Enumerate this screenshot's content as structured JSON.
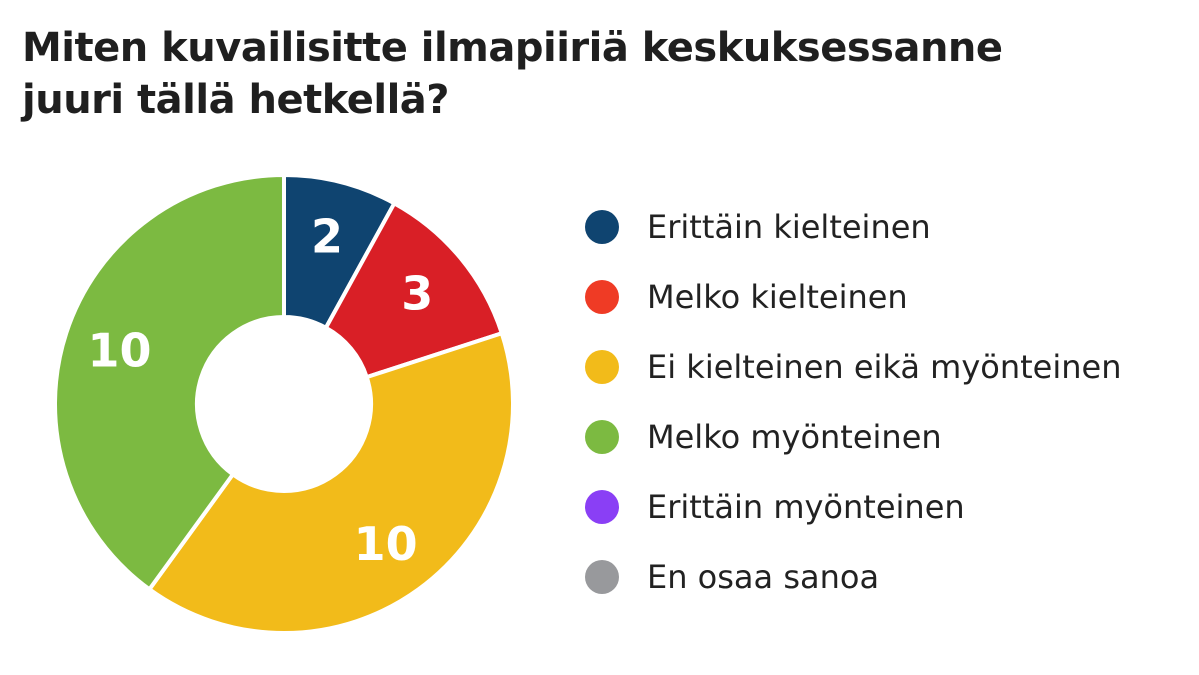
{
  "chart_data": {
    "type": "pie",
    "variant": "donut",
    "title": "Miten kuvailisitte ilmapiiriä keskuksessanne juuri tällä hetkellä?",
    "title_lines": [
      "Miten kuvailisitte ilmapiiriä keskuksessanne",
      "juuri tällä hetkellä?"
    ],
    "categories": [
      "Erittäin kielteinen",
      "Melko kielteinen",
      "Ei kielteinen eikä myönteinen",
      "Melko myönteinen",
      "Erittäin myönteinen",
      "En osaa sanoa"
    ],
    "values": [
      2,
      3,
      10,
      10,
      0,
      0
    ],
    "slice_colors": [
      "#0f4470",
      "#d91f26",
      "#f2bb1a",
      "#7cba41",
      "#8a3ff5",
      "#98999c"
    ],
    "legend_colors": [
      "#0f4470",
      "#ef3b25",
      "#f2bb1a",
      "#7cba41",
      "#8a3ff5",
      "#98999c"
    ],
    "legend_position": "right"
  }
}
